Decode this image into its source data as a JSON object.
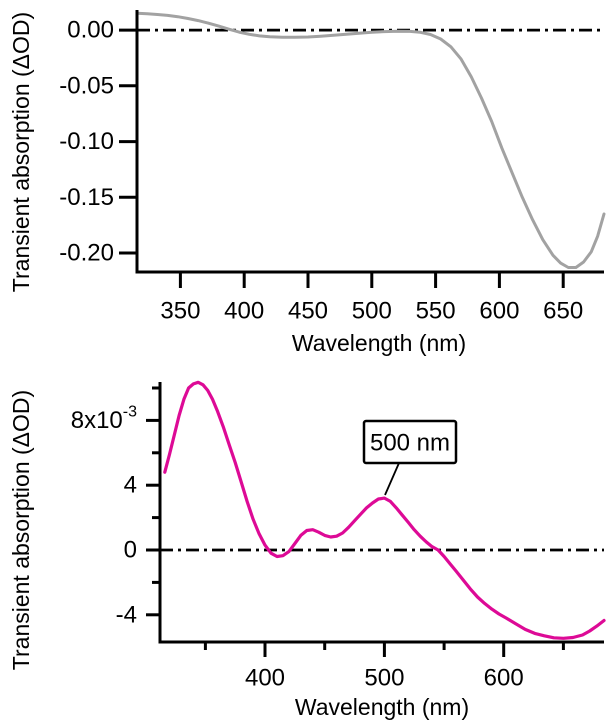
{
  "figure": {
    "background": "#ffffff",
    "text_color": "#000000"
  },
  "chart_data": [
    {
      "type": "line",
      "series_name": "transient absorption spectrum (gray)",
      "xlabel": "Wavelength (nm)",
      "ylabel": "Transient absorption (ΔOD)",
      "line_color": "#a2a2a2",
      "grid": false,
      "legend": null,
      "xlim": [
        316,
        682
      ],
      "ylim": [
        -0.217,
        0.018
      ],
      "x_ticks": [
        {
          "v": 350,
          "label": "350"
        },
        {
          "v": 400,
          "label": "400"
        },
        {
          "v": 450,
          "label": "450"
        },
        {
          "v": 500,
          "label": "500"
        },
        {
          "v": 550,
          "label": "550"
        },
        {
          "v": 600,
          "label": "600"
        },
        {
          "v": 650,
          "label": "650"
        }
      ],
      "y_ticks": [
        {
          "v": 0,
          "label": "0.00"
        },
        {
          "v": -0.05,
          "label": "-0.05"
        },
        {
          "v": -0.1,
          "label": "-0.10"
        },
        {
          "v": -0.15,
          "label": "-0.15"
        },
        {
          "v": -0.2,
          "label": "-0.20"
        }
      ],
      "zero_line": {
        "style": "dash-dot",
        "color": "#000000"
      },
      "points": [
        [
          316,
          0.015
        ],
        [
          324,
          0.0146
        ],
        [
          332,
          0.014
        ],
        [
          340,
          0.0132
        ],
        [
          348,
          0.012
        ],
        [
          356,
          0.0104
        ],
        [
          364,
          0.0085
        ],
        [
          372,
          0.0062
        ],
        [
          380,
          0.0036
        ],
        [
          388,
          0.0008
        ],
        [
          396,
          -0.0018
        ],
        [
          404,
          -0.0038
        ],
        [
          412,
          -0.0052
        ],
        [
          420,
          -0.006
        ],
        [
          430,
          -0.0064
        ],
        [
          440,
          -0.0065
        ],
        [
          450,
          -0.0062
        ],
        [
          460,
          -0.0055
        ],
        [
          470,
          -0.0047
        ],
        [
          480,
          -0.0038
        ],
        [
          490,
          -0.0028
        ],
        [
          500,
          -0.002
        ],
        [
          510,
          -0.0014
        ],
        [
          520,
          -0.0011
        ],
        [
          530,
          -0.0012
        ],
        [
          538,
          -0.002
        ],
        [
          546,
          -0.004
        ],
        [
          554,
          -0.008
        ],
        [
          562,
          -0.015
        ],
        [
          570,
          -0.026
        ],
        [
          578,
          -0.042
        ],
        [
          586,
          -0.061
        ],
        [
          594,
          -0.082
        ],
        [
          602,
          -0.106
        ],
        [
          610,
          -0.128
        ],
        [
          618,
          -0.15
        ],
        [
          626,
          -0.17
        ],
        [
          634,
          -0.188
        ],
        [
          642,
          -0.202
        ],
        [
          648,
          -0.209
        ],
        [
          654,
          -0.213
        ],
        [
          660,
          -0.213
        ],
        [
          666,
          -0.208
        ],
        [
          672,
          -0.199
        ],
        [
          677,
          -0.185
        ],
        [
          682,
          -0.165
        ]
      ]
    },
    {
      "type": "line",
      "series_name": "transient absorption spectrum (magenta)",
      "xlabel": "Wavelength (nm)",
      "ylabel": "Transient absorption (ΔOD)",
      "y_unit": "10^-3 ΔOD",
      "line_color": "#dd0a96",
      "grid": false,
      "legend": null,
      "xlim": [
        312,
        684
      ],
      "ylim": [
        -5.68,
        10.37
      ],
      "x_ticks": [
        {
          "v": 400,
          "label": "400"
        },
        {
          "v": 500,
          "label": "500"
        },
        {
          "v": 600,
          "label": "600"
        }
      ],
      "x_minor_ticks": [
        350,
        450,
        550,
        650
      ],
      "y_ticks": [
        {
          "v": 8,
          "label": "8x10",
          "sup": "-3"
        },
        {
          "v": 4,
          "label": "4"
        },
        {
          "v": 0,
          "label": "0"
        },
        {
          "v": -4,
          "label": "-4"
        }
      ],
      "y_minor_ticks": [
        10,
        6,
        2,
        -2
      ],
      "zero_line": {
        "style": "dash-dot",
        "color": "#000000"
      },
      "annotation": {
        "label": "500 nm",
        "target_nm": 500
      },
      "points": [
        [
          316,
          4.8
        ],
        [
          320,
          5.9
        ],
        [
          324,
          7.1
        ],
        [
          328,
          8.3
        ],
        [
          332,
          9.3
        ],
        [
          336,
          10.0
        ],
        [
          340,
          10.25
        ],
        [
          344,
          10.35
        ],
        [
          348,
          10.2
        ],
        [
          352,
          9.85
        ],
        [
          356,
          9.3
        ],
        [
          360,
          8.6
        ],
        [
          365,
          7.6
        ],
        [
          370,
          6.5
        ],
        [
          375,
          5.4
        ],
        [
          380,
          4.2
        ],
        [
          385,
          3.0
        ],
        [
          390,
          1.9
        ],
        [
          395,
          1.0
        ],
        [
          400,
          0.3
        ],
        [
          405,
          -0.2
        ],
        [
          410,
          -0.4
        ],
        [
          415,
          -0.35
        ],
        [
          420,
          -0.1
        ],
        [
          425,
          0.4
        ],
        [
          430,
          0.9
        ],
        [
          435,
          1.2
        ],
        [
          440,
          1.25
        ],
        [
          445,
          1.1
        ],
        [
          450,
          0.9
        ],
        [
          455,
          0.8
        ],
        [
          460,
          0.85
        ],
        [
          465,
          1.05
        ],
        [
          470,
          1.4
        ],
        [
          475,
          1.8
        ],
        [
          480,
          2.2
        ],
        [
          485,
          2.6
        ],
        [
          490,
          2.9
        ],
        [
          495,
          3.15
        ],
        [
          500,
          3.2
        ],
        [
          505,
          3.0
        ],
        [
          510,
          2.6
        ],
        [
          515,
          2.15
        ],
        [
          520,
          1.7
        ],
        [
          525,
          1.25
        ],
        [
          530,
          0.85
        ],
        [
          535,
          0.5
        ],
        [
          540,
          0.2
        ],
        [
          545,
          0.0
        ],
        [
          550,
          -0.4
        ],
        [
          555,
          -0.85
        ],
        [
          560,
          -1.3
        ],
        [
          566,
          -1.85
        ],
        [
          572,
          -2.4
        ],
        [
          578,
          -2.9
        ],
        [
          584,
          -3.3
        ],
        [
          590,
          -3.65
        ],
        [
          596,
          -3.95
        ],
        [
          602,
          -4.2
        ],
        [
          610,
          -4.55
        ],
        [
          618,
          -4.9
        ],
        [
          626,
          -5.15
        ],
        [
          634,
          -5.3
        ],
        [
          642,
          -5.42
        ],
        [
          650,
          -5.45
        ],
        [
          658,
          -5.4
        ],
        [
          666,
          -5.25
        ],
        [
          672,
          -5.0
        ],
        [
          678,
          -4.7
        ],
        [
          684,
          -4.35
        ]
      ]
    }
  ]
}
